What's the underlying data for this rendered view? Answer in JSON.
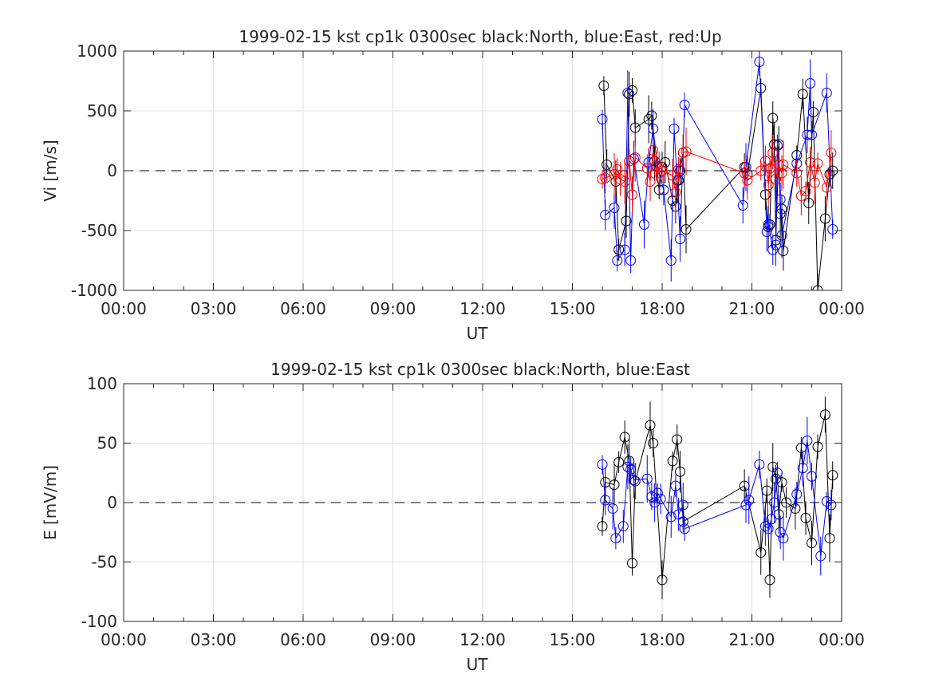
{
  "figure": {
    "background": "#ffffff"
  },
  "chart_data": [
    {
      "type": "scatter",
      "title": "1999-02-15 kst cp1k 0300sec black:North, blue:East, red:Up",
      "xlabel": "UT",
      "ylabel": "Vi [m/s]",
      "xlim": [
        0,
        24
      ],
      "ylim": [
        -1000,
        1000
      ],
      "xticks": [
        0,
        3,
        6,
        9,
        12,
        15,
        18,
        21,
        24
      ],
      "xticklabels": [
        "00:00",
        "03:00",
        "06:00",
        "09:00",
        "12:00",
        "15:00",
        "18:00",
        "21:00",
        "00:00"
      ],
      "yticks": [
        -1000,
        -500,
        0,
        500,
        1000
      ],
      "yticklabels": [
        "-1000",
        "-500",
        "0",
        "500",
        "1000"
      ],
      "grid": true,
      "zero_line": "dashed",
      "marker": "open-circle",
      "series": [
        {
          "name": "North",
          "color": "#000000",
          "x": [
            16.05,
            16.15,
            16.45,
            16.55,
            16.8,
            16.9,
            17.0,
            17.1,
            17.55,
            17.65,
            17.75,
            17.9,
            18.0,
            18.1,
            18.35,
            18.45,
            18.55,
            18.6,
            18.7,
            18.8,
            20.75,
            20.85,
            21.3,
            21.45,
            21.55,
            21.6,
            21.7,
            21.75,
            21.8,
            21.9,
            21.95,
            22.0,
            22.05,
            22.5,
            22.7,
            22.9,
            23.05,
            23.2,
            23.45,
            23.6,
            23.7
          ],
          "y": [
            710,
            50,
            -90,
            -660,
            -420,
            640,
            670,
            360,
            430,
            460,
            80,
            -160,
            30,
            70,
            -250,
            -300,
            -80,
            0,
            150,
            -490,
            30,
            -30,
            690,
            -200,
            -470,
            -450,
            440,
            220,
            -580,
            220,
            -360,
            -320,
            -670,
            130,
            640,
            -270,
            490,
            -1000,
            -400,
            -30,
            0
          ]
        },
        {
          "name": "East",
          "color": "#0000ff",
          "x": [
            16.0,
            16.1,
            16.4,
            16.5,
            16.75,
            16.85,
            16.95,
            17.05,
            17.4,
            17.55,
            17.7,
            17.85,
            18.05,
            18.3,
            18.4,
            18.5,
            18.6,
            18.75,
            20.7,
            20.8,
            21.25,
            21.5,
            21.55,
            21.7,
            21.8,
            21.85,
            21.95,
            22.0,
            22.5,
            22.85,
            22.95,
            23.0,
            23.5,
            23.7
          ],
          "y": [
            430,
            -370,
            -310,
            -750,
            -660,
            650,
            -750,
            100,
            -450,
            70,
            350,
            30,
            -160,
            -750,
            350,
            -80,
            -570,
            550,
            -290,
            30,
            910,
            -510,
            -450,
            -660,
            -620,
            210,
            -240,
            -540,
            60,
            300,
            730,
            300,
            650,
            -490
          ]
        },
        {
          "name": "Up",
          "color": "#ff0000",
          "x": [
            16.0,
            16.1,
            16.4,
            16.5,
            16.6,
            16.75,
            16.9,
            17.0,
            17.1,
            17.5,
            17.6,
            17.7,
            17.8,
            17.9,
            18.0,
            18.35,
            18.45,
            18.55,
            18.7,
            18.8,
            20.75,
            20.85,
            21.3,
            21.45,
            21.55,
            21.6,
            21.7,
            21.8,
            21.9,
            22.0,
            22.05,
            22.5,
            22.65,
            22.8,
            22.95,
            23.1,
            23.2,
            23.5,
            23.65
          ],
          "y": [
            -70,
            -60,
            -30,
            10,
            -70,
            -90,
            80,
            -200,
            110,
            20,
            -90,
            170,
            40,
            -20,
            0,
            -40,
            -180,
            10,
            150,
            160,
            -20,
            -80,
            0,
            80,
            -120,
            20,
            150,
            -70,
            50,
            -20,
            50,
            -20,
            -210,
            -170,
            70,
            -100,
            60,
            -140,
            150
          ]
        }
      ],
      "error_bars": "vertical, same color as series"
    },
    {
      "type": "scatter",
      "title": "1999-02-15 kst cp1k 0300sec black:North, blue:East",
      "xlabel": "UT",
      "ylabel": "E [mV/m]",
      "xlim": [
        0,
        24
      ],
      "ylim": [
        -100,
        100
      ],
      "xticks": [
        0,
        3,
        6,
        9,
        12,
        15,
        18,
        21,
        24
      ],
      "xticklabels": [
        "00:00",
        "03:00",
        "06:00",
        "09:00",
        "12:00",
        "15:00",
        "18:00",
        "21:00",
        "00:00"
      ],
      "yticks": [
        -100,
        -50,
        0,
        50,
        100
      ],
      "yticklabels": [
        "-100",
        "-50",
        "0",
        "50",
        "100"
      ],
      "grid": true,
      "zero_line": "dashed",
      "marker": "open-circle",
      "series": [
        {
          "name": "North",
          "color": "#000000",
          "x": [
            16.0,
            16.1,
            16.4,
            16.55,
            16.75,
            16.9,
            17.0,
            17.1,
            17.6,
            17.7,
            18.0,
            18.35,
            18.5,
            18.6,
            18.7,
            20.75,
            21.3,
            21.5,
            21.6,
            21.7,
            21.8,
            21.9,
            22.0,
            22.15,
            22.45,
            22.65,
            22.8,
            23.0,
            23.2,
            23.45,
            23.6,
            23.7
          ],
          "y": [
            -20,
            17,
            15,
            34,
            55,
            35,
            -51,
            18,
            65,
            50,
            -65,
            35,
            53,
            26,
            -16,
            14,
            -42,
            10,
            -65,
            30,
            20,
            -10,
            17,
            0,
            -5,
            46,
            -13,
            -34,
            47,
            74,
            -30,
            23
          ]
        },
        {
          "name": "East",
          "color": "#0000ff",
          "x": [
            16.0,
            16.1,
            16.35,
            16.45,
            16.7,
            16.85,
            16.95,
            17.05,
            17.5,
            17.65,
            17.75,
            17.85,
            17.95,
            18.3,
            18.45,
            18.55,
            18.7,
            18.75,
            20.8,
            20.9,
            21.25,
            21.45,
            21.55,
            21.65,
            21.75,
            21.85,
            21.95,
            22.05,
            22.5,
            22.7,
            22.85,
            23.0,
            23.3,
            23.5,
            23.65
          ],
          "y": [
            32,
            2,
            -5,
            -30,
            -20,
            30,
            28,
            19,
            20,
            5,
            0,
            8,
            3,
            -12,
            14,
            -10,
            -2,
            -22,
            -2,
            2,
            32,
            -20,
            -22,
            -14,
            0,
            25,
            -25,
            -30,
            7,
            29,
            52,
            22,
            -45,
            1,
            -2
          ]
        }
      ],
      "error_bars": "vertical, same color as series"
    }
  ]
}
